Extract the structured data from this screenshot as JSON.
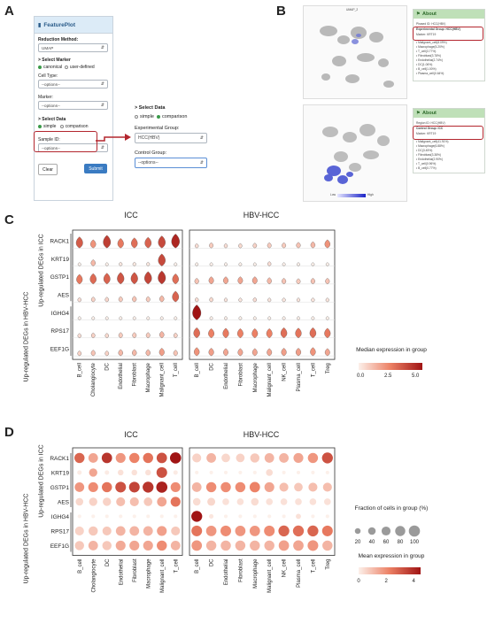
{
  "panels": {
    "A": "A",
    "B": "B",
    "C": "C",
    "D": "D"
  },
  "featureplot": {
    "title": "FeaturePlot",
    "reduction_label": "Reduction Method:",
    "reduction_value": "UMAP",
    "select_marker": "> Select Marker",
    "canonical": "canonical",
    "user_defined": "user-defined",
    "cell_type_label": "Cell Type:",
    "cell_type_value": "--options--",
    "marker_label": "Marker:",
    "marker_value": "--options--",
    "select_data": "> Select Data",
    "simple": "simple",
    "comparison": "comparison",
    "sample_label": "Sample ID:",
    "sample_value": "--options--",
    "clear": "Clear",
    "submit": "Submit"
  },
  "expanded": {
    "select_data": "> Select Data",
    "simple": "simple",
    "comparison": "comparison",
    "exp_label": "Experimental Group:",
    "exp_value": "HCC(HBV)",
    "ctrl_label": "Control Group:",
    "ctrl_value": "--options--"
  },
  "panel_b": {
    "umap_label": "UMAP_2",
    "about1": "About",
    "about2": "About",
    "a1_lines": [
      "Phased ID: HCC(HBV)",
      "Experimental Group: HCC(HBV)",
      "Marker: KRT19",
      "• Malignant_cell(8.09%)",
      "• Macrophage(5.20%)",
      "• T_cell(3.77%)",
      "• Fibroblast(3.78%)",
      "• Endothelial(2.74%)",
      "• DC(1.06%)",
      "• B_cell(1.00%)",
      "• Plasma_cell(0.64%)"
    ],
    "a2_lines": [
      "Region ID: HCC(HBV)",
      "Control Group: ICC",
      "Marker: KRT19",
      "• Malignant_cell(41.91%)",
      "• Macrophage(6.88%)",
      "• DC(3.45%)",
      "• Fibroblast(3.38%)",
      "• Endothelial(2.90%)",
      "• T_cell(0.96%)",
      "• B_cell(0.77%)"
    ],
    "legend_low": "Low",
    "legend_high": "High"
  },
  "panel_c": {
    "title_icc": "ICC",
    "title_hbv": "HBV-HCC",
    "side_top": "Up-regulated DEGs in ICC",
    "side_bottom": "Up-regulated DEGs in HBV-HCC",
    "colorbar_title": "Median expression in group",
    "colorbar_ticks": [
      "0.0",
      "2.5",
      "5.0"
    ]
  },
  "panel_d": {
    "title_icc": "ICC",
    "title_hbv": "HBV-HCC",
    "side_top": "Up-regulated DEGs in ICC",
    "side_bottom": "Up-regulated DEGs in HBV-HCC",
    "size_title": "Fraction of cells in group (%)",
    "size_ticks": [
      "20",
      "40",
      "60",
      "80",
      "100"
    ],
    "color_title": "Mean expression in group",
    "color_ticks": [
      "0",
      "2",
      "4"
    ]
  },
  "genes": [
    "RACK1",
    "KRT19",
    "GSTP1",
    "AES",
    "IGHG4",
    "RPS17",
    "EEF1G"
  ],
  "icc_cells": [
    "B_cell",
    "Cholangiocyte",
    "DC",
    "Endothelial",
    "Fibroblast",
    "Macrophage",
    "Malignant_cell",
    "T_cell"
  ],
  "hbv_cells": [
    "B_cell",
    "DC",
    "Endothelial",
    "Fibroblast",
    "Macrophage",
    "Malignant_cell",
    "NK_cell",
    "Plasma_cell",
    "T_cell",
    "Treg"
  ],
  "chart_data": [
    {
      "type": "heatmap",
      "title": "ICC",
      "rows": [
        "RACK1",
        "KRT19",
        "GSTP1",
        "AES",
        "IGHG4",
        "RPS17",
        "EEF1G"
      ],
      "columns": [
        "B_cell",
        "Cholangiocyte",
        "DC",
        "Endothelial",
        "Fibroblast",
        "Macrophage",
        "Malignant_cell",
        "T_cell"
      ],
      "values": [
        [
          4.0,
          2.5,
          4.8,
          3.2,
          3.5,
          3.8,
          4.5,
          5.5
        ],
        [
          0.0,
          1.5,
          0.0,
          0.2,
          0.2,
          0.2,
          4.5,
          0.0
        ],
        [
          3.2,
          3.6,
          3.8,
          4.2,
          4.2,
          4.6,
          5.0,
          3.5
        ],
        [
          0.5,
          0.8,
          0.7,
          1.0,
          1.2,
          1.0,
          1.5,
          3.8
        ],
        [
          0.0,
          0.0,
          0.0,
          0.0,
          0.0,
          0.0,
          0.0,
          0.0
        ],
        [
          0.5,
          0.8,
          0.6,
          1.0,
          1.0,
          1.0,
          1.6,
          0.8
        ],
        [
          0.8,
          1.2,
          0.8,
          1.5,
          1.5,
          1.5,
          2.2,
          1.2
        ]
      ]
    },
    {
      "type": "heatmap",
      "title": "HBV-HCC",
      "rows": [
        "RACK1",
        "KRT19",
        "GSTP1",
        "AES",
        "IGHG4",
        "RPS17",
        "EEF1G"
      ],
      "columns": [
        "B_cell",
        "DC",
        "Endothelial",
        "Fibroblast",
        "Macrophage",
        "Malignant_cell",
        "NK_cell",
        "Plasma_cell",
        "T_cell",
        "Treg"
      ],
      "values": [
        [
          0.5,
          1.0,
          0.5,
          0.6,
          0.8,
          1.0,
          1.0,
          1.2,
          1.5,
          2.5
        ],
        [
          0.0,
          0.0,
          0.0,
          0.0,
          0.0,
          0.5,
          0.0,
          0.0,
          0.0,
          0.0
        ],
        [
          1.2,
          2.0,
          2.0,
          2.0,
          2.0,
          1.5,
          1.2,
          1.0,
          1.2,
          1.2
        ],
        [
          0.5,
          0.6,
          0.3,
          0.3,
          0.5,
          0.3,
          0.3,
          0.3,
          0.3,
          0.3
        ],
        [
          6.0,
          0.0,
          0.0,
          0.0,
          0.0,
          0.0,
          0.0,
          0.0,
          0.0,
          0.0
        ],
        [
          3.5,
          3.0,
          3.2,
          3.0,
          3.0,
          3.0,
          3.5,
          3.3,
          3.5,
          3.2
        ],
        [
          2.5,
          2.2,
          2.0,
          2.0,
          2.0,
          2.0,
          2.2,
          2.2,
          2.5,
          2.0
        ]
      ]
    },
    {
      "type": "scatter",
      "title": "ICC",
      "rows": [
        "RACK1",
        "KRT19",
        "GSTP1",
        "AES",
        "IGHG4",
        "RPS17",
        "EEF1G"
      ],
      "columns": [
        "B_cell",
        "Cholangiocyte",
        "DC",
        "Endothelial",
        "Fibroblast",
        "Macrophage",
        "Malignant_cell",
        "T_cell"
      ],
      "mean_expression": [
        [
          2.8,
          1.5,
          3.8,
          1.8,
          2.2,
          2.5,
          3.2,
          4.5
        ],
        [
          0.1,
          1.5,
          0.1,
          0.3,
          0.3,
          0.3,
          3.2,
          0.1
        ],
        [
          1.8,
          2.0,
          2.5,
          3.2,
          3.5,
          3.8,
          4.2,
          2.0
        ],
        [
          0.5,
          0.6,
          0.6,
          1.0,
          1.0,
          0.8,
          1.5,
          2.5
        ],
        [
          0.0,
          0.0,
          0.0,
          0.0,
          0.0,
          0.0,
          0.0,
          0.0
        ],
        [
          0.6,
          0.8,
          0.8,
          1.2,
          1.2,
          1.2,
          1.6,
          0.8
        ],
        [
          0.8,
          1.2,
          0.8,
          1.4,
          1.5,
          1.5,
          2.0,
          1.2
        ]
      ],
      "fraction_pct": [
        [
          80,
          70,
          85,
          75,
          80,
          80,
          85,
          100
        ],
        [
          10,
          50,
          10,
          20,
          20,
          20,
          90,
          10
        ],
        [
          70,
          75,
          80,
          90,
          90,
          95,
          100,
          75
        ],
        [
          40,
          50,
          50,
          60,
          60,
          55,
          70,
          75
        ],
        [
          5,
          5,
          5,
          5,
          5,
          5,
          5,
          5
        ],
        [
          60,
          65,
          60,
          70,
          70,
          70,
          75,
          60
        ],
        [
          65,
          70,
          65,
          75,
          75,
          75,
          80,
          70
        ]
      ]
    },
    {
      "type": "scatter",
      "title": "HBV-HCC",
      "rows": [
        "RACK1",
        "KRT19",
        "GSTP1",
        "AES",
        "IGHG4",
        "RPS17",
        "EEF1G"
      ],
      "columns": [
        "B_cell",
        "DC",
        "Endothelial",
        "Fibroblast",
        "Macrophage",
        "Malignant_cell",
        "NK_cell",
        "Plasma_cell",
        "T_cell",
        "Treg"
      ],
      "mean_expression": [
        [
          0.6,
          1.2,
          0.5,
          0.6,
          0.8,
          1.2,
          1.2,
          1.5,
          1.8,
          3.2
        ],
        [
          0.0,
          0.0,
          0.0,
          0.0,
          0.0,
          0.4,
          0.0,
          0.0,
          0.0,
          0.0
        ],
        [
          1.2,
          2.0,
          2.0,
          2.0,
          2.2,
          1.5,
          1.0,
          0.8,
          1.0,
          1.0
        ],
        [
          0.4,
          0.5,
          0.3,
          0.3,
          0.4,
          0.3,
          0.3,
          0.3,
          0.3,
          0.3
        ],
        [
          5.0,
          0.2,
          0.0,
          0.0,
          0.0,
          0.0,
          0.0,
          0.3,
          0.0,
          0.0
        ],
        [
          2.5,
          1.8,
          2.0,
          1.8,
          1.8,
          2.0,
          2.8,
          2.6,
          2.8,
          2.4
        ],
        [
          1.8,
          1.2,
          1.2,
          1.2,
          1.2,
          1.2,
          1.6,
          1.5,
          1.8,
          1.2
        ]
      ],
      "fraction_pct": [
        [
          60,
          70,
          55,
          55,
          65,
          70,
          70,
          75,
          80,
          95
        ],
        [
          5,
          5,
          5,
          5,
          5,
          30,
          5,
          5,
          5,
          5
        ],
        [
          70,
          80,
          80,
          80,
          85,
          75,
          60,
          55,
          60,
          60
        ],
        [
          40,
          45,
          30,
          30,
          40,
          30,
          30,
          30,
          30,
          30
        ],
        [
          95,
          10,
          5,
          5,
          5,
          5,
          5,
          15,
          5,
          5
        ],
        [
          90,
          85,
          90,
          85,
          85,
          90,
          95,
          95,
          95,
          90
        ],
        [
          85,
          80,
          80,
          80,
          80,
          80,
          85,
          85,
          90,
          80
        ]
      ]
    }
  ]
}
